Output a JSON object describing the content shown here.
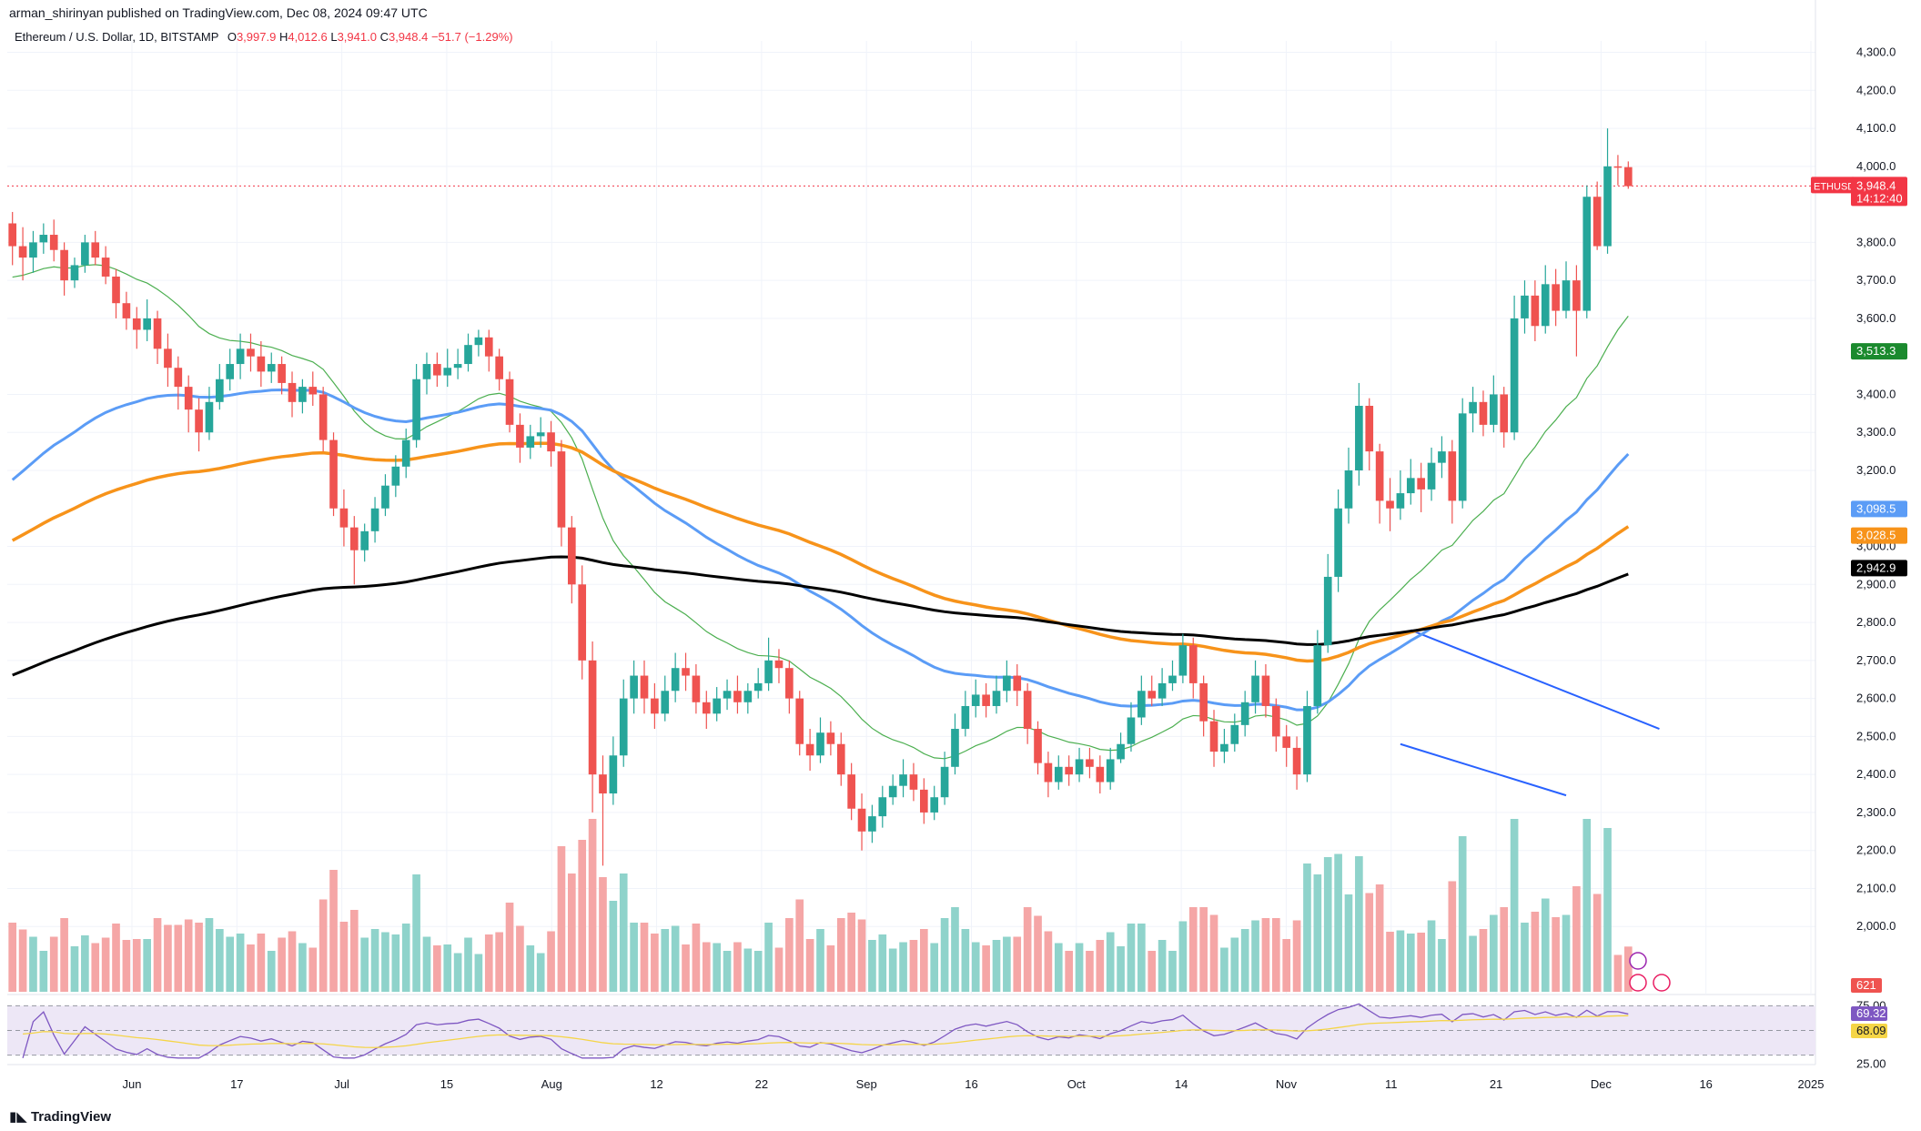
{
  "header": {
    "publisher": "arman_shirinyan published on TradingView.com, Dec 08, 2024 09:47 UTC",
    "symbol": "Ethereum / U.S. Dollar, 1D, BITSTAMP",
    "open_label": "O",
    "open": "3,997.9",
    "high_label": "H",
    "high": "4,012.6",
    "low_label": "L",
    "low": "3,941.0",
    "close_label": "C",
    "close": "3,948.4",
    "change": "−51.7 (−1.29%)"
  },
  "footer": {
    "brand": "TradingView"
  },
  "colors": {
    "up": "#26a69a",
    "down": "#ef5350",
    "volume_up": "#8fd3cb",
    "volume_down": "#f5a6a6",
    "ma_fast": "#4caf50",
    "ma_50": "#5b9cf6",
    "ma_100": "#f7931a",
    "ma_200": "#000000",
    "rsi": "#7e57c2",
    "rsi_ma": "#f5d547",
    "rsi_band": "#ede7f6",
    "price_line": "#f23645"
  },
  "chart_data": {
    "type": "candlestick",
    "title": "Ethereum / U.S. Dollar, 1D, BITSTAMP",
    "y_axis": {
      "min": 1900,
      "max": 4330,
      "ticks": [
        "4,300.0",
        "4,200.0",
        "4,100.0",
        "4,000.0",
        "3,800.0",
        "3,700.0",
        "3,600.0",
        "3,400.0",
        "3,300.0",
        "3,200.0",
        "3,000.0",
        "2,900.0",
        "2,800.0",
        "2,700.0",
        "2,600.0",
        "2,500.0",
        "2,400.0",
        "2,300.0",
        "2,200.0",
        "2,100.0",
        "2,000.0"
      ]
    },
    "x_axis": {
      "ticks": [
        "Jun",
        "17",
        "Jul",
        "15",
        "Aug",
        "12",
        "22",
        "Sep",
        "16",
        "Oct",
        "14",
        "Nov",
        "11",
        "21",
        "Dec",
        "16",
        "2025"
      ]
    },
    "price_labels": [
      {
        "name": "ETHUSD",
        "value": "3,948.4",
        "countdown": "14:12:40",
        "color": "#f23645"
      },
      {
        "name": "ma20",
        "value": "3,513.3",
        "color": "#1b8a2e"
      },
      {
        "name": "ma50",
        "value": "3,098.5",
        "color": "#5b9cf6"
      },
      {
        "name": "ma100",
        "value": "3,028.5",
        "color": "#f7931a"
      },
      {
        "name": "ma200",
        "value": "2,942.9",
        "color": "#000000"
      },
      {
        "name": "volume",
        "value": "621",
        "color": "#ef5350"
      }
    ],
    "rsi": {
      "upper": "75.00",
      "lower": "25.00",
      "value": "69.32",
      "ma_value": "68.09",
      "upper_level": 75,
      "lower_level": 25
    },
    "candles": [
      [
        3850,
        3790,
        3880,
        3740
      ],
      [
        3790,
        3760,
        3840,
        3700
      ],
      [
        3760,
        3800,
        3830,
        3720
      ],
      [
        3800,
        3820,
        3850,
        3770
      ],
      [
        3820,
        3780,
        3860,
        3750
      ],
      [
        3780,
        3700,
        3800,
        3660
      ],
      [
        3700,
        3740,
        3760,
        3680
      ],
      [
        3740,
        3800,
        3820,
        3720
      ],
      [
        3800,
        3760,
        3830,
        3740
      ],
      [
        3760,
        3710,
        3790,
        3690
      ],
      [
        3710,
        3640,
        3730,
        3600
      ],
      [
        3640,
        3600,
        3670,
        3570
      ],
      [
        3600,
        3570,
        3630,
        3520
      ],
      [
        3570,
        3600,
        3650,
        3540
      ],
      [
        3600,
        3520,
        3620,
        3480
      ],
      [
        3520,
        3470,
        3560,
        3420
      ],
      [
        3470,
        3420,
        3500,
        3360
      ],
      [
        3420,
        3360,
        3450,
        3300
      ],
      [
        3360,
        3300,
        3390,
        3250
      ],
      [
        3300,
        3380,
        3420,
        3280
      ],
      [
        3380,
        3440,
        3480,
        3360
      ],
      [
        3440,
        3480,
        3520,
        3410
      ],
      [
        3480,
        3520,
        3560,
        3440
      ],
      [
        3520,
        3500,
        3560,
        3460
      ],
      [
        3500,
        3460,
        3540,
        3420
      ],
      [
        3460,
        3480,
        3510,
        3430
      ],
      [
        3480,
        3430,
        3500,
        3400
      ],
      [
        3430,
        3380,
        3460,
        3340
      ],
      [
        3380,
        3420,
        3440,
        3350
      ],
      [
        3420,
        3400,
        3460,
        3370
      ],
      [
        3400,
        3280,
        3420,
        3250
      ],
      [
        3280,
        3100,
        3300,
        3080
      ],
      [
        3100,
        3050,
        3150,
        3000
      ],
      [
        3050,
        2990,
        3080,
        2900
      ],
      [
        2990,
        3040,
        3060,
        2960
      ],
      [
        3040,
        3100,
        3130,
        3010
      ],
      [
        3100,
        3160,
        3190,
        3080
      ],
      [
        3160,
        3210,
        3240,
        3130
      ],
      [
        3210,
        3280,
        3310,
        3180
      ],
      [
        3280,
        3440,
        3480,
        3260
      ],
      [
        3440,
        3480,
        3510,
        3400
      ],
      [
        3480,
        3450,
        3510,
        3420
      ],
      [
        3450,
        3470,
        3520,
        3420
      ],
      [
        3470,
        3480,
        3520,
        3440
      ],
      [
        3480,
        3530,
        3560,
        3460
      ],
      [
        3530,
        3550,
        3570,
        3500
      ],
      [
        3550,
        3500,
        3570,
        3460
      ],
      [
        3500,
        3440,
        3520,
        3410
      ],
      [
        3440,
        3320,
        3460,
        3300
      ],
      [
        3320,
        3260,
        3350,
        3220
      ],
      [
        3260,
        3290,
        3320,
        3230
      ],
      [
        3290,
        3300,
        3340,
        3260
      ],
      [
        3300,
        3250,
        3330,
        3210
      ],
      [
        3250,
        3050,
        3280,
        3000
      ],
      [
        3050,
        2900,
        3080,
        2850
      ],
      [
        2900,
        2700,
        2950,
        2650
      ],
      [
        2700,
        2400,
        2750,
        2300
      ],
      [
        2400,
        2350,
        2450,
        2160
      ],
      [
        2350,
        2450,
        2500,
        2320
      ],
      [
        2450,
        2600,
        2650,
        2420
      ],
      [
        2600,
        2660,
        2700,
        2560
      ],
      [
        2660,
        2600,
        2700,
        2560
      ],
      [
        2600,
        2560,
        2640,
        2520
      ],
      [
        2560,
        2620,
        2660,
        2540
      ],
      [
        2620,
        2680,
        2720,
        2590
      ],
      [
        2680,
        2660,
        2720,
        2620
      ],
      [
        2660,
        2590,
        2690,
        2560
      ],
      [
        2590,
        2560,
        2620,
        2520
      ],
      [
        2560,
        2600,
        2630,
        2540
      ],
      [
        2600,
        2620,
        2650,
        2570
      ],
      [
        2620,
        2590,
        2660,
        2560
      ],
      [
        2590,
        2620,
        2640,
        2560
      ],
      [
        2620,
        2640,
        2680,
        2600
      ],
      [
        2640,
        2700,
        2760,
        2620
      ],
      [
        2700,
        2680,
        2730,
        2640
      ],
      [
        2680,
        2600,
        2700,
        2560
      ],
      [
        2600,
        2480,
        2620,
        2450
      ],
      [
        2480,
        2450,
        2520,
        2410
      ],
      [
        2450,
        2510,
        2550,
        2430
      ],
      [
        2510,
        2480,
        2540,
        2450
      ],
      [
        2480,
        2400,
        2510,
        2370
      ],
      [
        2400,
        2310,
        2430,
        2280
      ],
      [
        2310,
        2250,
        2350,
        2200
      ],
      [
        2250,
        2290,
        2320,
        2220
      ],
      [
        2290,
        2340,
        2370,
        2260
      ],
      [
        2340,
        2370,
        2400,
        2320
      ],
      [
        2370,
        2400,
        2440,
        2340
      ],
      [
        2400,
        2360,
        2430,
        2330
      ],
      [
        2360,
        2300,
        2390,
        2270
      ],
      [
        2300,
        2340,
        2370,
        2280
      ],
      [
        2340,
        2420,
        2460,
        2320
      ],
      [
        2420,
        2520,
        2560,
        2400
      ],
      [
        2520,
        2580,
        2620,
        2500
      ],
      [
        2580,
        2610,
        2650,
        2550
      ],
      [
        2610,
        2580,
        2640,
        2550
      ],
      [
        2580,
        2620,
        2660,
        2560
      ],
      [
        2620,
        2660,
        2700,
        2590
      ],
      [
        2660,
        2620,
        2690,
        2580
      ],
      [
        2620,
        2520,
        2640,
        2480
      ],
      [
        2520,
        2430,
        2540,
        2400
      ],
      [
        2430,
        2380,
        2460,
        2340
      ],
      [
        2380,
        2420,
        2450,
        2360
      ],
      [
        2420,
        2400,
        2450,
        2370
      ],
      [
        2400,
        2440,
        2470,
        2380
      ],
      [
        2440,
        2420,
        2470,
        2390
      ],
      [
        2420,
        2380,
        2450,
        2350
      ],
      [
        2380,
        2440,
        2470,
        2360
      ],
      [
        2440,
        2480,
        2510,
        2430
      ],
      [
        2480,
        2550,
        2590,
        2460
      ],
      [
        2550,
        2620,
        2660,
        2530
      ],
      [
        2620,
        2600,
        2660,
        2580
      ],
      [
        2600,
        2640,
        2680,
        2580
      ],
      [
        2640,
        2660,
        2700,
        2620
      ],
      [
        2660,
        2740,
        2770,
        2640
      ],
      [
        2740,
        2640,
        2760,
        2600
      ],
      [
        2640,
        2540,
        2660,
        2500
      ],
      [
        2540,
        2460,
        2570,
        2420
      ],
      [
        2460,
        2480,
        2520,
        2430
      ],
      [
        2480,
        2530,
        2560,
        2460
      ],
      [
        2530,
        2590,
        2620,
        2500
      ],
      [
        2590,
        2660,
        2700,
        2560
      ],
      [
        2660,
        2580,
        2690,
        2550
      ],
      [
        2580,
        2500,
        2600,
        2460
      ],
      [
        2500,
        2470,
        2530,
        2420
      ],
      [
        2470,
        2400,
        2500,
        2360
      ],
      [
        2400,
        2580,
        2620,
        2380
      ],
      [
        2580,
        2740,
        2780,
        2560
      ],
      [
        2740,
        2920,
        2980,
        2720
      ],
      [
        2920,
        3100,
        3150,
        2880
      ],
      [
        3100,
        3200,
        3260,
        3060
      ],
      [
        3200,
        3370,
        3430,
        3160
      ],
      [
        3370,
        3250,
        3390,
        3200
      ],
      [
        3250,
        3120,
        3270,
        3060
      ],
      [
        3120,
        3100,
        3180,
        3040
      ],
      [
        3100,
        3140,
        3200,
        3070
      ],
      [
        3140,
        3180,
        3230,
        3110
      ],
      [
        3180,
        3150,
        3220,
        3090
      ],
      [
        3150,
        3220,
        3260,
        3120
      ],
      [
        3220,
        3250,
        3290,
        3180
      ],
      [
        3250,
        3120,
        3280,
        3060
      ],
      [
        3120,
        3350,
        3390,
        3100
      ],
      [
        3350,
        3380,
        3420,
        3300
      ],
      [
        3380,
        3320,
        3410,
        3290
      ],
      [
        3320,
        3400,
        3450,
        3300
      ],
      [
        3400,
        3300,
        3420,
        3260
      ],
      [
        3300,
        3600,
        3660,
        3280
      ],
      [
        3600,
        3660,
        3700,
        3560
      ],
      [
        3660,
        3580,
        3700,
        3540
      ],
      [
        3580,
        3690,
        3740,
        3560
      ],
      [
        3690,
        3620,
        3730,
        3580
      ],
      [
        3620,
        3700,
        3750,
        3600
      ],
      [
        3700,
        3620,
        3740,
        3500
      ],
      [
        3620,
        3920,
        3950,
        3600
      ],
      [
        3920,
        3790,
        3960,
        3780
      ],
      [
        3790,
        4000,
        4100,
        3770
      ],
      [
        4000,
        3998,
        4030,
        3950
      ],
      [
        3998,
        3948,
        4013,
        3941
      ]
    ]
  }
}
